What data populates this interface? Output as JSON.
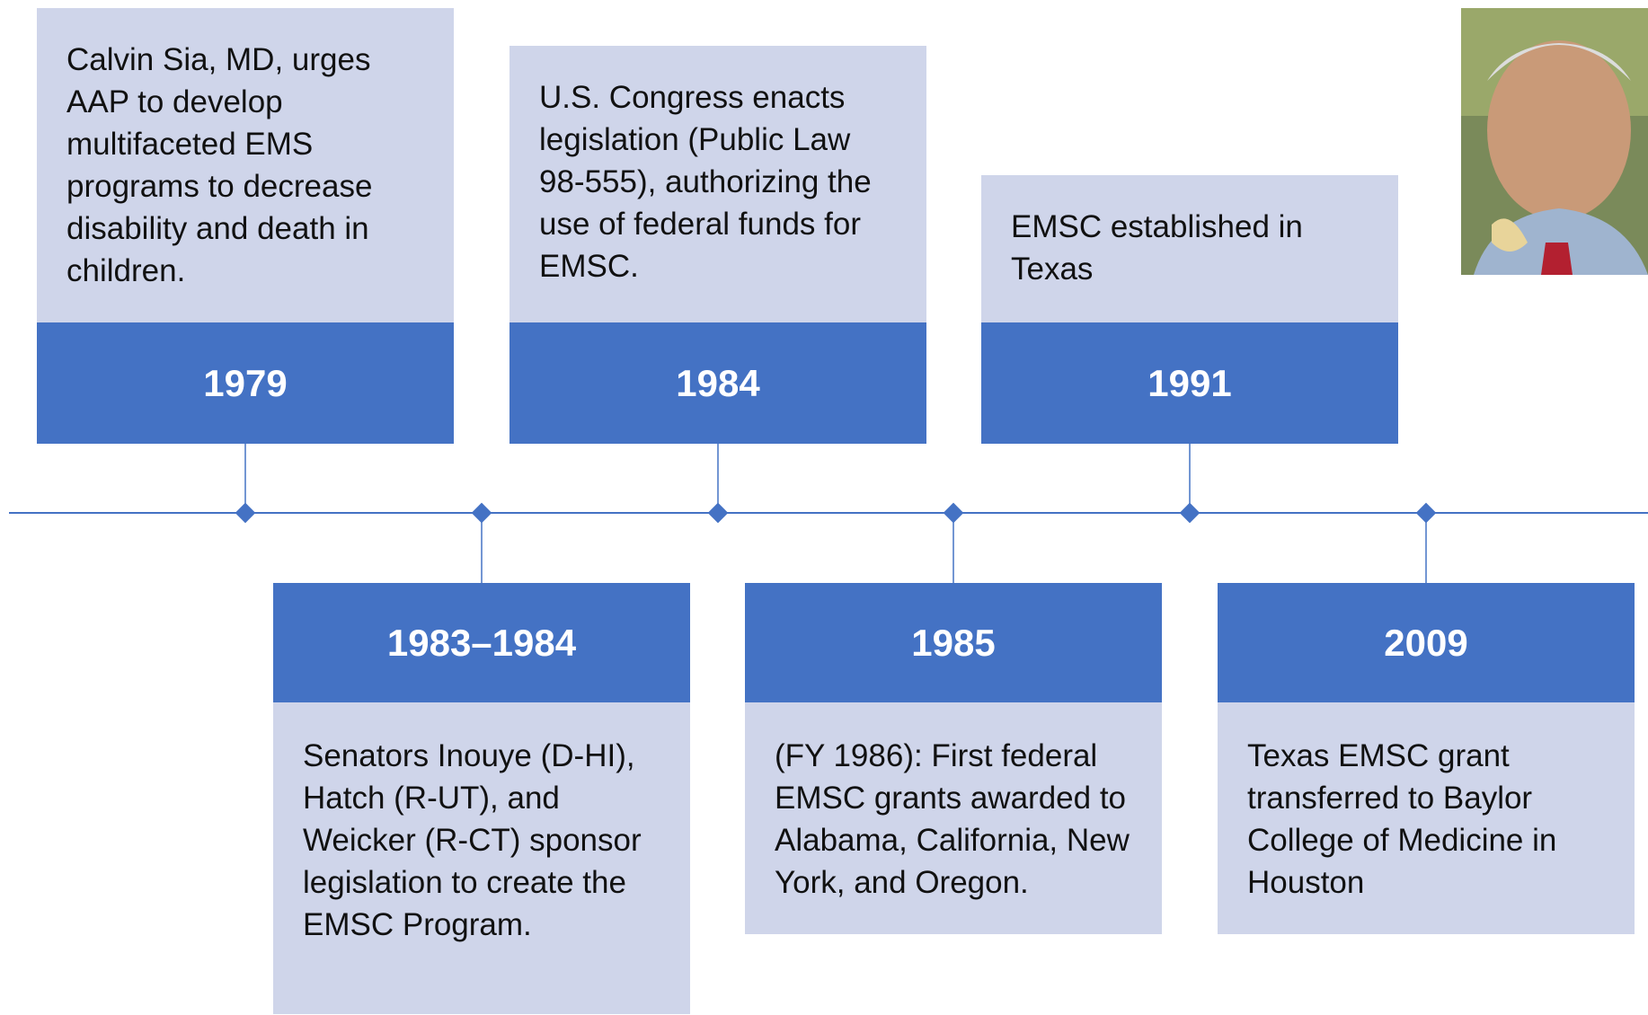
{
  "events": [
    {
      "year": "1979",
      "text": "Calvin Sia, MD, urges AAP to develop multifaceted EMS programs to decrease disability and death in children."
    },
    {
      "year": "1983–1984",
      "text": "Senators Inouye (D-HI), Hatch (R-UT), and Weicker (R-CT) sponsor legislation to create the EMSC Program."
    },
    {
      "year": "1984",
      "text": "U.S. Congress enacts legislation (Public Law 98-555), authorizing the use of federal funds for EMSC."
    },
    {
      "year": "1985",
      "text": "(FY 1986): First federal EMSC grants awarded to Alabama, California, New York, and Oregon."
    },
    {
      "year": "1991",
      "text": "EMSC established in Texas"
    },
    {
      "year": "2009",
      "text": "Texas EMSC grant transferred to Baylor College of Medicine in Houston"
    }
  ]
}
